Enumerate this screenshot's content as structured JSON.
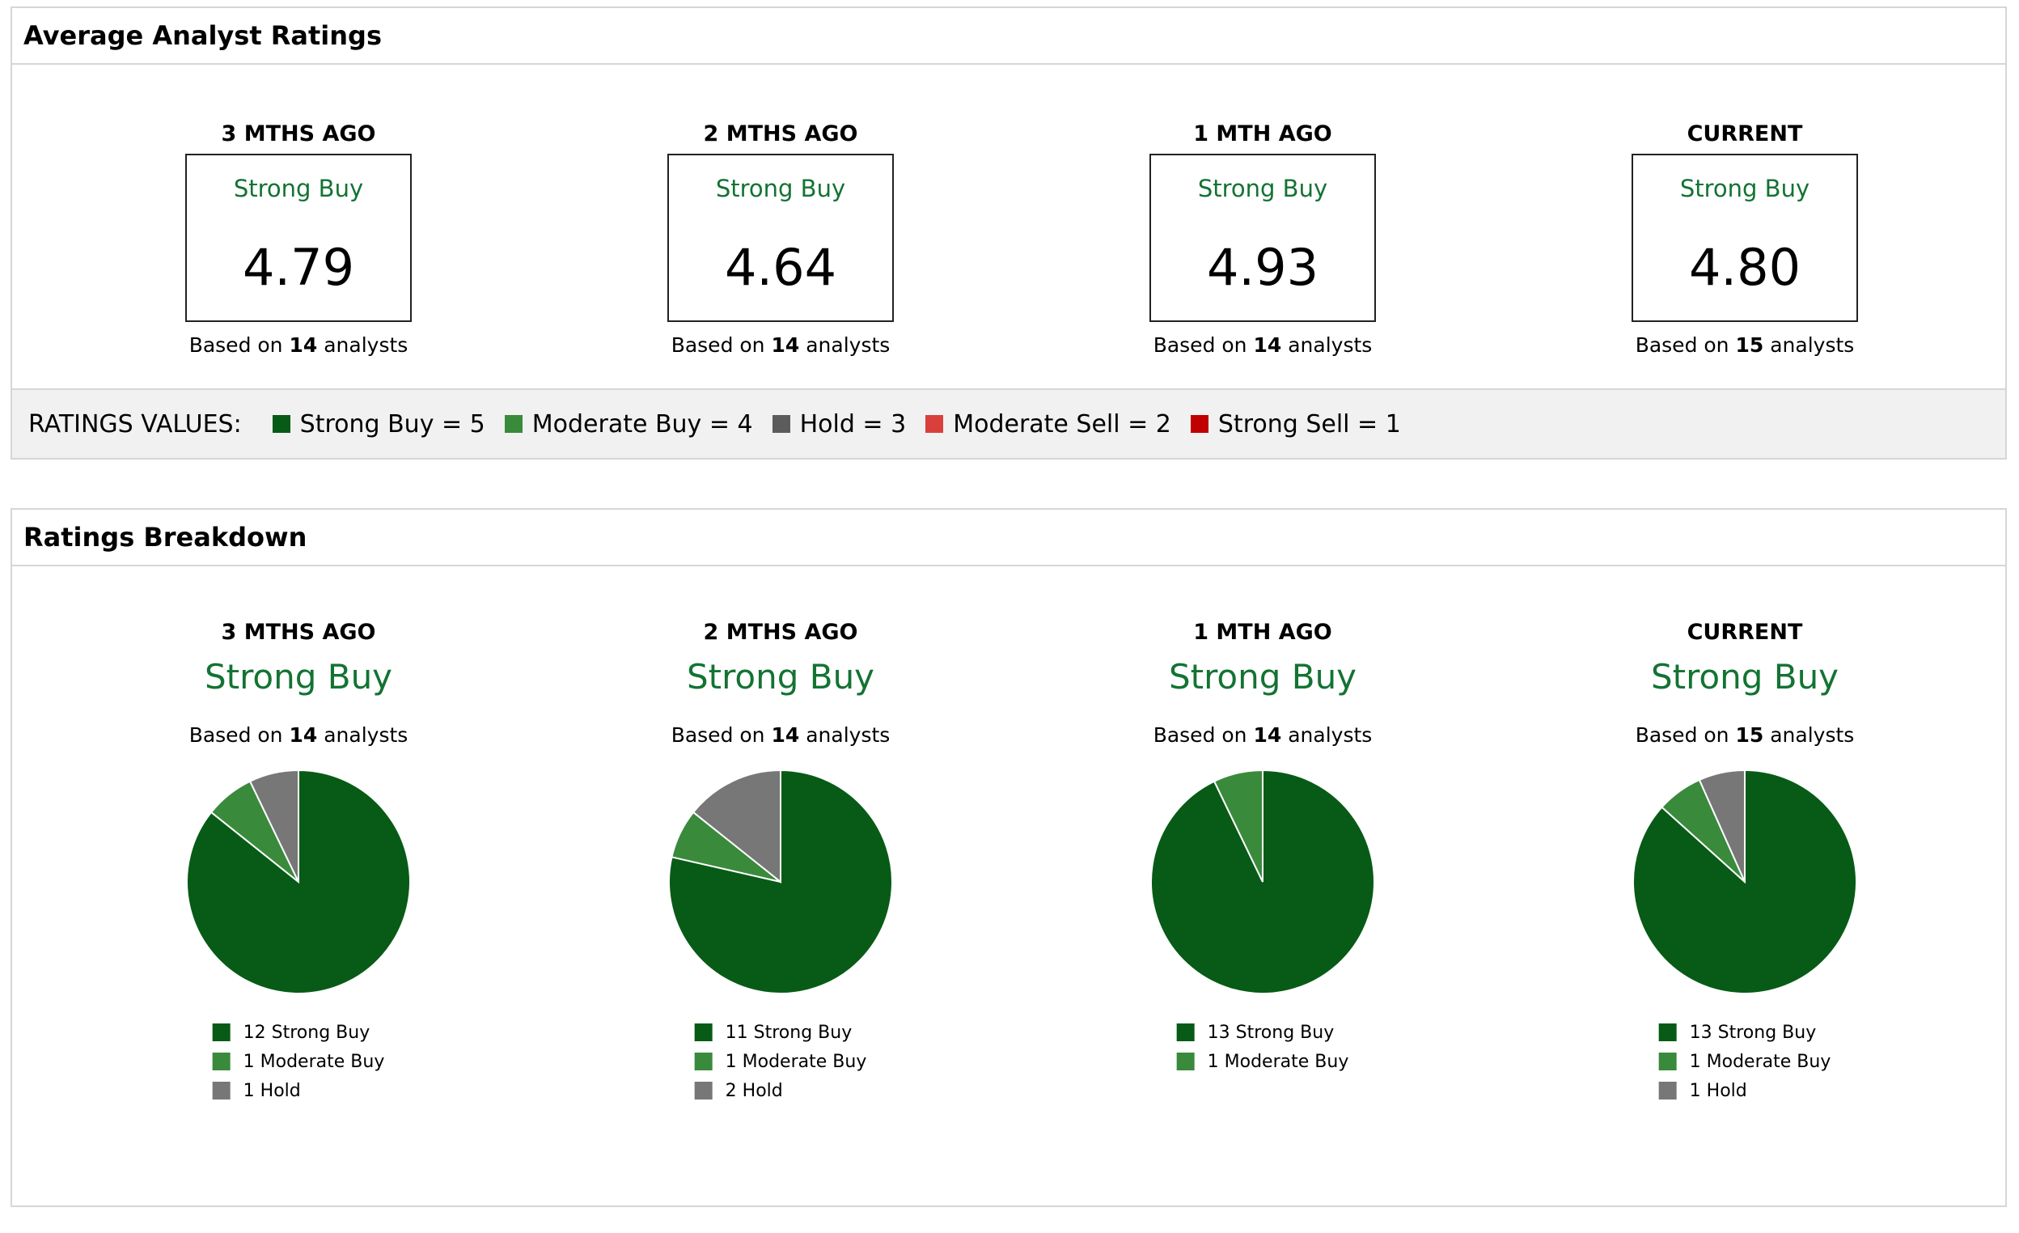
{
  "avg": {
    "title": "Average Analyst Ratings",
    "columns": [
      {
        "period": "3 MTHS AGO",
        "label": "Strong Buy",
        "value": "4.79",
        "based_prefix": "Based on",
        "analysts": "14",
        "based_suffix": "analysts"
      },
      {
        "period": "2 MTHS AGO",
        "label": "Strong Buy",
        "value": "4.64",
        "based_prefix": "Based on",
        "analysts": "14",
        "based_suffix": "analysts"
      },
      {
        "period": "1 MTH AGO",
        "label": "Strong Buy",
        "value": "4.93",
        "based_prefix": "Based on",
        "analysts": "14",
        "based_suffix": "analysts"
      },
      {
        "period": "CURRENT",
        "label": "Strong Buy",
        "value": "4.80",
        "based_prefix": "Based on",
        "analysts": "15",
        "based_suffix": "analysts"
      }
    ],
    "legend": {
      "title": "RATINGS VALUES:",
      "items": [
        {
          "label": "Strong Buy = 5",
          "color": "#075b16"
        },
        {
          "label": "Moderate Buy = 4",
          "color": "#3a8a3c"
        },
        {
          "label": "Hold = 3",
          "color": "#5c5c5c"
        },
        {
          "label": "Moderate Sell = 2",
          "color": "#d9403c"
        },
        {
          "label": "Strong Sell = 1",
          "color": "#c00000"
        }
      ]
    }
  },
  "breakdown": {
    "title": "Ratings Breakdown",
    "columns": [
      {
        "period": "3 MTHS AGO",
        "label": "Strong Buy",
        "based_prefix": "Based on",
        "analysts": "14",
        "based_suffix": "analysts",
        "legend": [
          "12 Strong Buy",
          "1 Moderate Buy",
          "1 Hold"
        ]
      },
      {
        "period": "2 MTHS AGO",
        "label": "Strong Buy",
        "based_prefix": "Based on",
        "analysts": "14",
        "based_suffix": "analysts",
        "legend": [
          "11 Strong Buy",
          "1 Moderate Buy",
          "2 Hold"
        ]
      },
      {
        "period": "1 MTH AGO",
        "label": "Strong Buy",
        "based_prefix": "Based on",
        "analysts": "14",
        "based_suffix": "analysts",
        "legend": [
          "13 Strong Buy",
          "1 Moderate Buy"
        ]
      },
      {
        "period": "CURRENT",
        "label": "Strong Buy",
        "based_prefix": "Based on",
        "analysts": "15",
        "based_suffix": "analysts",
        "legend": [
          "13 Strong Buy",
          "1 Moderate Buy",
          "1 Hold"
        ]
      }
    ]
  },
  "colors": {
    "accent_green": "#137333",
    "strong_buy": "#075b16",
    "moderate_buy": "#3a8a3c",
    "hold": "#777777"
  },
  "chart_data": [
    {
      "type": "pie",
      "categories": [
        "Strong Buy",
        "Moderate Buy",
        "Hold"
      ],
      "values": [
        12,
        1,
        1
      ]
    },
    {
      "type": "pie",
      "categories": [
        "Strong Buy",
        "Moderate Buy",
        "Hold"
      ],
      "values": [
        11,
        1,
        2
      ]
    },
    {
      "type": "pie",
      "categories": [
        "Strong Buy",
        "Moderate Buy"
      ],
      "values": [
        13,
        1
      ]
    },
    {
      "type": "pie",
      "categories": [
        "Strong Buy",
        "Moderate Buy",
        "Hold"
      ],
      "values": [
        13,
        1,
        1
      ]
    }
  ]
}
